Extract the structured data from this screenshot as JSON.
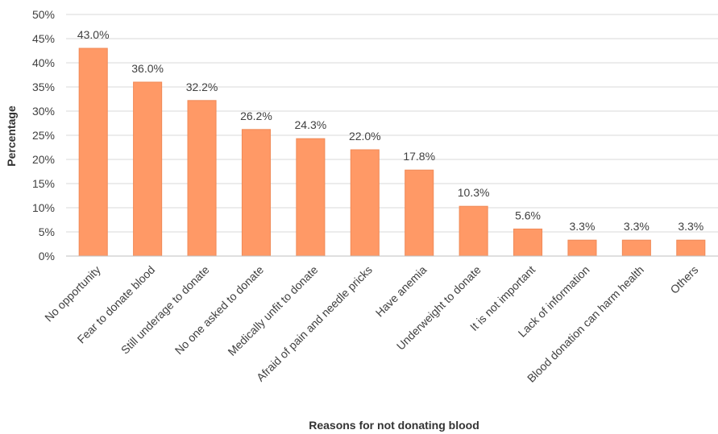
{
  "chart_data": {
    "type": "bar",
    "xlabel": "Reasons for not donating blood",
    "ylabel": "Percentage",
    "ylim": [
      0,
      50
    ],
    "yticks": [
      "0%",
      "5%",
      "10%",
      "15%",
      "20%",
      "25%",
      "30%",
      "35%",
      "40%",
      "45%",
      "50%"
    ],
    "grid": true,
    "categories": [
      "No opportunity",
      "Fear to donate blood",
      "Still underage to donate",
      "No one asked to donate",
      "Medically unfit to donate",
      "Afraid of pain and needle pricks",
      "Have anemia",
      "Underweight to donate",
      "It is not important",
      "Lack of information",
      "Blood donation can harm health",
      "Others"
    ],
    "values": [
      43.0,
      36.0,
      32.2,
      26.2,
      24.3,
      22.0,
      17.8,
      10.3,
      5.6,
      3.3,
      3.3,
      3.3
    ],
    "data_labels": [
      "43.0%",
      "36.0%",
      "32.2%",
      "26.2%",
      "24.3%",
      "22.0%",
      "17.8%",
      "10.3%",
      "5.6%",
      "3.3%",
      "3.3%",
      "3.3%"
    ],
    "bar_color": "#FF9966",
    "bar_edge_color": "#F08A57"
  }
}
